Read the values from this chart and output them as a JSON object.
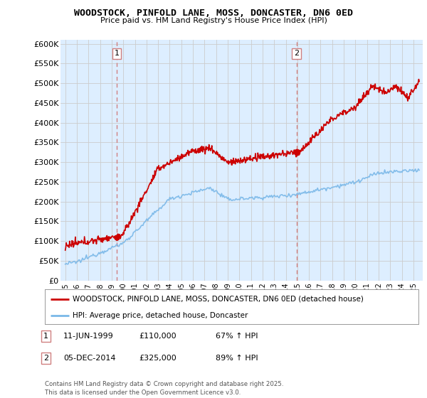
{
  "title": "WOODSTOCK, PINFOLD LANE, MOSS, DONCASTER, DN6 0ED",
  "subtitle": "Price paid vs. HM Land Registry's House Price Index (HPI)",
  "ylabel_ticks": [
    "£0",
    "£50K",
    "£100K",
    "£150K",
    "£200K",
    "£250K",
    "£300K",
    "£350K",
    "£400K",
    "£450K",
    "£500K",
    "£550K",
    "£600K"
  ],
  "ytick_vals": [
    0,
    50000,
    100000,
    150000,
    200000,
    250000,
    300000,
    350000,
    400000,
    450000,
    500000,
    550000,
    600000
  ],
  "ylim": [
    0,
    610000
  ],
  "xlim_start": 1994.6,
  "xlim_end": 2025.8,
  "xtick_years": [
    1995,
    1996,
    1997,
    1998,
    1999,
    2000,
    2001,
    2002,
    2003,
    2004,
    2005,
    2006,
    2007,
    2008,
    2009,
    2010,
    2011,
    2012,
    2013,
    2014,
    2015,
    2016,
    2017,
    2018,
    2019,
    2020,
    2021,
    2022,
    2023,
    2024,
    2025
  ],
  "legend_line1": "WOODSTOCK, PINFOLD LANE, MOSS, DONCASTER, DN6 0ED (detached house)",
  "legend_line2": "HPI: Average price, detached house, Doncaster",
  "marker1_x": 1999.44,
  "marker1_y": 110000,
  "marker2_x": 2014.92,
  "marker2_y": 325000,
  "table_rows": [
    {
      "num": "1",
      "date": "11-JUN-1999",
      "price": "£110,000",
      "hpi": "67% ↑ HPI"
    },
    {
      "num": "2",
      "date": "05-DEC-2014",
      "price": "£325,000",
      "hpi": "89% ↑ HPI"
    }
  ],
  "footnote": "Contains HM Land Registry data © Crown copyright and database right 2025.\nThis data is licensed under the Open Government Licence v3.0.",
  "hpi_color": "#7ab8e8",
  "price_color": "#cc0000",
  "vline_color": "#d08080",
  "grid_color": "#cccccc",
  "chart_bg": "#ddeeff",
  "background_color": "#ffffff"
}
